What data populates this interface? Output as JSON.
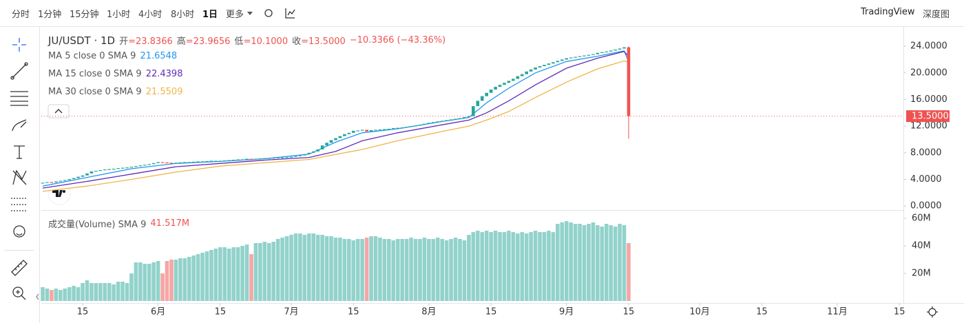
{
  "toolbar": {
    "intervals": [
      "分时",
      "1分钟",
      "15分钟",
      "1小时",
      "4小时",
      "8小时",
      "1日"
    ],
    "more": "更多",
    "brand": "TradingView",
    "depth": "深度图"
  },
  "legend": {
    "symbol": "JU/USDT · 1D",
    "ohlc": [
      {
        "label": "开",
        "value": "=23.8366"
      },
      {
        "label": "高",
        "value": "=23.9656"
      },
      {
        "label": "低",
        "value": "=10.1000"
      },
      {
        "label": "收",
        "value": "=13.5000"
      }
    ],
    "change": "−10.3366 (−43.36%)"
  },
  "chart_data": {
    "type": "candlestick",
    "xlim": [
      -0.31,
      193.9
    ],
    "xticks": [
      {
        "value": 9,
        "label": "15"
      },
      {
        "value": 26,
        "label": "6月"
      },
      {
        "value": 40,
        "label": "15"
      },
      {
        "value": 56,
        "label": "7月"
      },
      {
        "value": 70,
        "label": "15"
      },
      {
        "value": 87,
        "label": "8月"
      },
      {
        "value": 101,
        "label": "15"
      },
      {
        "value": 118,
        "label": "9月"
      },
      {
        "value": 132,
        "label": "15"
      },
      {
        "value": 148,
        "label": "10月"
      },
      {
        "value": 162,
        "label": "15"
      },
      {
        "value": 179,
        "label": "11月"
      },
      {
        "value": 193,
        "label": "15"
      }
    ],
    "ylim": [
      -0.6,
      26.8
    ],
    "yticks": [
      {
        "value": 0,
        "label": "0.0000"
      },
      {
        "value": 4,
        "label": "4.0000"
      },
      {
        "value": 8,
        "label": "8.0000"
      },
      {
        "value": 12,
        "label": "12.0000"
      },
      {
        "value": 16,
        "label": "16.0000"
      },
      {
        "value": 20,
        "label": "20.0000"
      },
      {
        "value": 24,
        "label": "24.0000"
      }
    ],
    "up_color": "#26a69a",
    "down_color": "#ef5350",
    "price_tag": {
      "value": 13.5,
      "label": "13.5000"
    },
    "candles": {
      "open": [
        3.4,
        3.5,
        3.6,
        3.55,
        3.7,
        3.8,
        3.9,
        4.05,
        4.2,
        4.4,
        4.6,
        4.9,
        5.2,
        5.3,
        5.4,
        5.5,
        5.55,
        5.6,
        5.7,
        5.75,
        5.8,
        5.9,
        6.0,
        6.1,
        6.2,
        6.3,
        6.45,
        6.6,
        6.55,
        6.5,
        6.45,
        6.5,
        6.55,
        6.6,
        6.6,
        6.65,
        6.7,
        6.7,
        6.75,
        6.8,
        6.8,
        6.8,
        6.85,
        6.9,
        6.95,
        7.0,
        7.0,
        7.1,
        7.05,
        7.1,
        7.15,
        7.2,
        7.2,
        7.25,
        7.3,
        7.3,
        7.35,
        7.4,
        7.5,
        7.6,
        7.8,
        8.0,
        8.2,
        8.5,
        9.1,
        9.5,
        9.9,
        10.2,
        10.5,
        10.8,
        11.0,
        11.3,
        11.35,
        11.45,
        11.2,
        11.4,
        11.45,
        11.5,
        11.55,
        11.6,
        11.7,
        11.75,
        11.8,
        11.9,
        12.0,
        12.1,
        12.2,
        12.35,
        12.5,
        12.6,
        12.7,
        12.8,
        12.9,
        13.0,
        13.1,
        13.2,
        13.35,
        13.5,
        15.0,
        15.8,
        16.5,
        17.0,
        17.5,
        17.9,
        18.2,
        18.5,
        18.8,
        19.1,
        19.5,
        19.8,
        20.2,
        20.5,
        20.8,
        21.0,
        21.2,
        21.4,
        21.6,
        21.8,
        22.0,
        22.2,
        22.3,
        22.4,
        22.5,
        22.6,
        22.7,
        22.8,
        23.0,
        23.1,
        23.2,
        23.35,
        23.5,
        23.65,
        23.8366
      ],
      "close": [
        3.5,
        3.6,
        3.55,
        3.7,
        3.8,
        3.9,
        4.05,
        4.2,
        4.4,
        4.6,
        4.9,
        5.2,
        5.3,
        5.4,
        5.5,
        5.55,
        5.6,
        5.7,
        5.75,
        5.8,
        5.9,
        6.0,
        6.1,
        6.2,
        6.3,
        6.45,
        6.6,
        6.55,
        6.5,
        6.45,
        6.5,
        6.55,
        6.6,
        6.6,
        6.65,
        6.7,
        6.7,
        6.75,
        6.8,
        6.8,
        6.8,
        6.85,
        6.9,
        6.95,
        7.0,
        7.0,
        7.1,
        7.05,
        7.1,
        7.15,
        7.2,
        7.2,
        7.25,
        7.3,
        7.3,
        7.35,
        7.4,
        7.5,
        7.6,
        7.8,
        8.0,
        8.2,
        8.5,
        9.1,
        9.5,
        9.9,
        10.2,
        10.5,
        10.8,
        11.0,
        11.3,
        11.35,
        11.45,
        11.2,
        11.4,
        11.45,
        11.5,
        11.55,
        11.6,
        11.7,
        11.75,
        11.8,
        11.9,
        12.0,
        12.1,
        12.2,
        12.35,
        12.5,
        12.6,
        12.7,
        12.8,
        12.9,
        13.0,
        13.1,
        13.2,
        13.35,
        13.5,
        15.0,
        15.8,
        16.5,
        17.0,
        17.5,
        17.9,
        18.2,
        18.5,
        18.8,
        19.1,
        19.5,
        19.8,
        20.2,
        20.5,
        20.8,
        21.0,
        21.2,
        21.4,
        21.6,
        21.8,
        22.0,
        22.2,
        22.3,
        22.4,
        22.5,
        22.6,
        22.7,
        22.8,
        23.0,
        23.1,
        23.2,
        23.35,
        23.5,
        23.65,
        23.84,
        13.5
      ],
      "last_high": 23.9656,
      "last_low": 10.1
    },
    "ma": [
      {
        "name": "MA 5 close 0 SMA 9",
        "color": "#2196f3",
        "x": [
          0,
          10,
          20,
          30,
          40,
          50,
          60,
          66,
          72,
          80,
          90,
          96,
          100,
          105,
          111,
          118,
          125,
          131,
          132
        ],
        "values": [
          3.0,
          4.3,
          5.6,
          6.4,
          6.7,
          7.1,
          7.8,
          9.6,
          11.0,
          11.6,
          12.7,
          13.3,
          15.5,
          17.7,
          20.0,
          21.7,
          22.5,
          23.3,
          21.6548
        ]
      },
      {
        "name": "MA 15 close 0 SMA 9",
        "color": "#5e2bb8",
        "x": [
          0,
          10,
          20,
          30,
          40,
          50,
          60,
          66,
          72,
          80,
          90,
          96,
          100,
          105,
          111,
          118,
          125,
          131,
          132
        ],
        "values": [
          2.7,
          3.7,
          4.8,
          5.9,
          6.4,
          6.9,
          7.3,
          8.2,
          9.8,
          11.0,
          12.2,
          12.9,
          14.0,
          15.8,
          18.2,
          20.7,
          22.2,
          23.2,
          22.4398
        ]
      },
      {
        "name": "MA 30 close 0 SMA 9",
        "color": "#f0b448",
        "x": [
          0,
          10,
          20,
          30,
          40,
          50,
          60,
          72,
          80,
          90,
          96,
          100,
          105,
          111,
          118,
          125,
          131,
          132
        ],
        "values": [
          2.2,
          3.0,
          4.0,
          5.1,
          6.0,
          6.5,
          7.0,
          8.5,
          9.8,
          11.2,
          12.0,
          12.9,
          14.2,
          16.3,
          18.6,
          20.6,
          21.8,
          21.5509
        ]
      }
    ],
    "volume": {
      "name": "成交量(Volume) SMA 9",
      "value_label": "41.517M",
      "ylim": [
        0,
        63.5
      ],
      "yticks": [
        {
          "value": 20,
          "label": "20M"
        },
        {
          "value": 40,
          "label": "40M"
        },
        {
          "value": 60,
          "label": "60M"
        }
      ],
      "up_color": "#92d2cb",
      "down_color": "#f5a6a6",
      "values": [
        10,
        9,
        8,
        9,
        8,
        9,
        10,
        11,
        10,
        13,
        15,
        13,
        13,
        13,
        13,
        13,
        12,
        14,
        14,
        13,
        20,
        28,
        28,
        27,
        27,
        28,
        29,
        20,
        29,
        30,
        30,
        31,
        31,
        32,
        33,
        34,
        35,
        36,
        37,
        38,
        39,
        39,
        38,
        39,
        39,
        40,
        41,
        34,
        42,
        42,
        43,
        42,
        43,
        45,
        46,
        47,
        48,
        49,
        49,
        48,
        49,
        49,
        48,
        48,
        47,
        47,
        46,
        46,
        45,
        45,
        44,
        45,
        45,
        46,
        47,
        47,
        46,
        45,
        45,
        44,
        45,
        45,
        45,
        46,
        45,
        45,
        46,
        45,
        45,
        46,
        45,
        44,
        45,
        46,
        45,
        44,
        48,
        50,
        51,
        50,
        51,
        50,
        51,
        50,
        50,
        51,
        50,
        49,
        50,
        49,
        50,
        51,
        50,
        50,
        51,
        50,
        56,
        57,
        58,
        57,
        56,
        56,
        55,
        56,
        57,
        55,
        54,
        56,
        55,
        54,
        56,
        55,
        42
      ]
    }
  }
}
